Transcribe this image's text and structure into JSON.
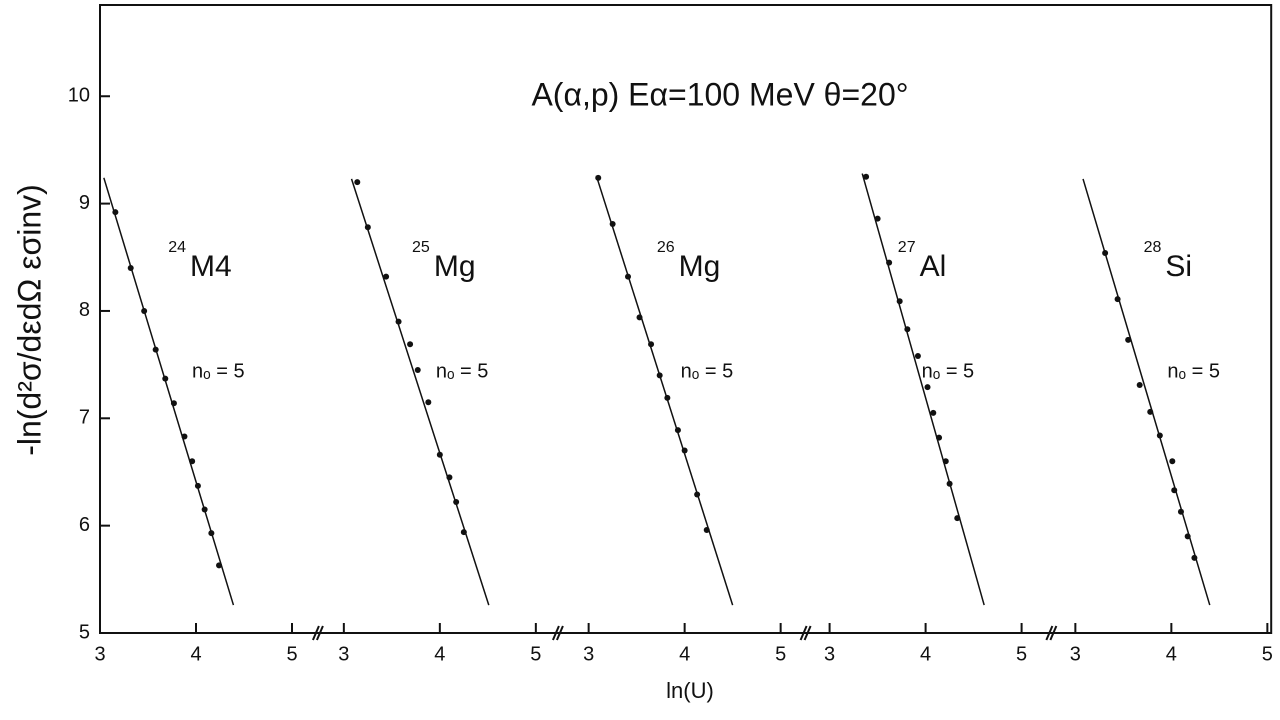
{
  "chart_data": {
    "type": "scatter",
    "title": "A(α,p)  Eα=100 MeV θ=20°",
    "y_label": "-ln(d²σ/dεdΩ εσinv)",
    "x_label": "ln(U)",
    "ylim": [
      5,
      10.85
    ],
    "yticks": [
      5,
      6,
      7,
      8,
      9,
      10
    ],
    "color": "#111111",
    "panels": [
      {
        "label_mass": "24",
        "label_element": "M4",
        "annotation": "nₒ = 5",
        "xlim": [
          3,
          5.27
        ],
        "xticks": [
          3,
          4,
          5
        ],
        "points": {
          "x": [
            3.16,
            3.32,
            3.46,
            3.58,
            3.68,
            3.77,
            3.88,
            3.96,
            4.02,
            4.09,
            4.16,
            4.24
          ],
          "values": [
            8.92,
            8.4,
            8.0,
            7.64,
            7.37,
            7.14,
            6.83,
            6.6,
            6.37,
            6.15,
            5.93,
            5.63
          ]
        },
        "fit": {
          "x": [
            3.04,
            4.39
          ],
          "values": [
            9.24,
            5.26
          ]
        }
      },
      {
        "label_mass": "25",
        "label_element": "Mg",
        "annotation": "nₒ = 5",
        "xlim": [
          2.73,
          5.23
        ],
        "xticks": [
          3,
          4,
          5
        ],
        "points": {
          "x": [
            3.14,
            3.25,
            3.44,
            3.57,
            3.69,
            3.77,
            3.88,
            4.0,
            4.1,
            4.17,
            4.25
          ],
          "values": [
            9.2,
            8.78,
            8.32,
            7.9,
            7.69,
            7.45,
            7.15,
            6.66,
            6.45,
            6.22,
            5.94
          ]
        },
        "fit": {
          "x": [
            3.08,
            4.51
          ],
          "values": [
            9.23,
            5.26
          ]
        }
      },
      {
        "label_mass": "26",
        "label_element": "Mg",
        "annotation": "nₒ = 5",
        "xlim": [
          2.68,
          5.26
        ],
        "xticks": [
          3,
          4,
          5
        ],
        "points": {
          "x": [
            3.1,
            3.25,
            3.41,
            3.53,
            3.65,
            3.74,
            3.82,
            3.93,
            4.0,
            4.13,
            4.23
          ],
          "values": [
            9.24,
            8.81,
            8.32,
            7.94,
            7.69,
            7.4,
            7.19,
            6.89,
            6.7,
            6.29,
            5.96
          ]
        },
        "fit": {
          "x": [
            3.08,
            4.5
          ],
          "values": [
            9.26,
            5.26
          ]
        }
      },
      {
        "label_mass": "27",
        "label_element": "Al",
        "annotation": "nₒ = 5",
        "xlim": [
          2.75,
          5.31
        ],
        "xticks": [
          3,
          4,
          5
        ],
        "points": {
          "x": [
            3.38,
            3.5,
            3.62,
            3.73,
            3.81,
            3.92,
            4.02,
            4.08,
            4.14,
            4.21,
            4.25,
            4.33
          ],
          "values": [
            9.25,
            8.86,
            8.45,
            8.09,
            7.83,
            7.58,
            7.29,
            7.05,
            6.82,
            6.6,
            6.39,
            6.07
          ]
        },
        "fit": {
          "x": [
            3.34,
            4.61
          ],
          "values": [
            9.28,
            5.26
          ]
        }
      },
      {
        "label_mass": "28",
        "label_element": "Si",
        "annotation": "nₒ = 5",
        "xlim": [
          2.75,
          5.04
        ],
        "xticks": [
          3,
          4,
          5
        ],
        "points": {
          "x": [
            3.31,
            3.44,
            3.55,
            3.67,
            3.78,
            3.88,
            4.01,
            4.03,
            4.1,
            4.17,
            4.24
          ],
          "values": [
            8.54,
            8.11,
            7.73,
            7.31,
            7.06,
            6.84,
            6.6,
            6.33,
            6.13,
            5.9,
            5.7
          ]
        },
        "fit": {
          "x": [
            3.08,
            4.4
          ],
          "values": [
            9.23,
            5.26
          ]
        }
      }
    ]
  }
}
